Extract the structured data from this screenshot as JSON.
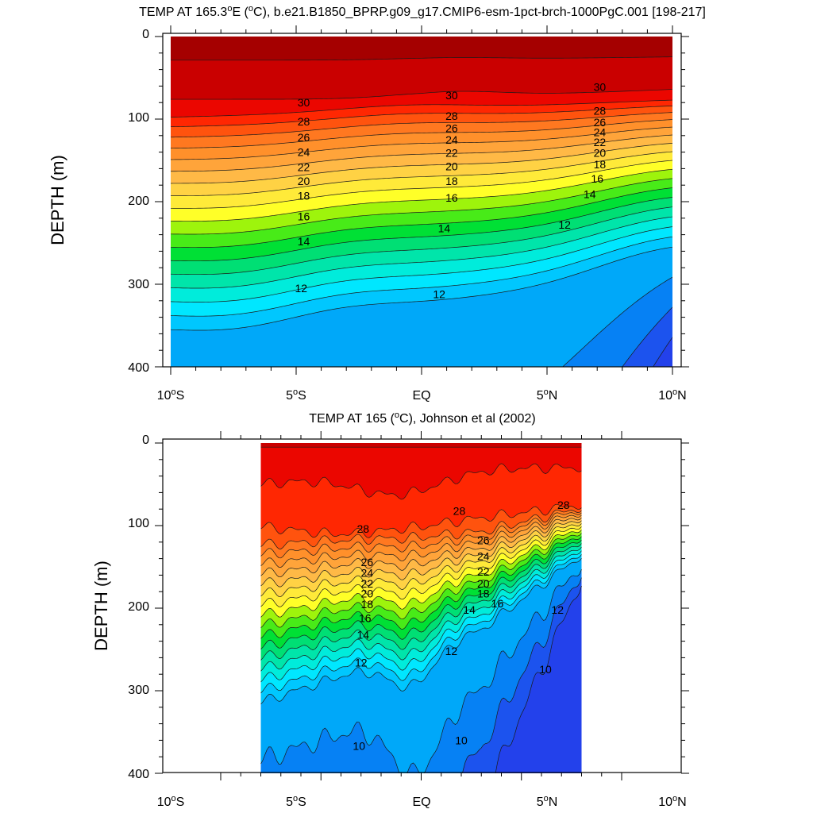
{
  "figure": {
    "panels": [
      {
        "title_parts": [
          "TEMP AT 165.3",
          "o",
          "E (",
          "o",
          "C), b.e21.B1850_BPRP.g09_g17.CMIP6-esm-1pct-brch-1000PgC.001 [198-217]"
        ],
        "source": "model"
      },
      {
        "title_parts": [
          "TEMP AT 165 (",
          "o",
          "C), Johnson et al (2002)"
        ],
        "source": "obs"
      }
    ],
    "x_tick_labels": [
      {
        "pre": "10",
        "sup": "o",
        "post": "S"
      },
      {
        "pre": "5",
        "sup": "o",
        "post": "S"
      },
      {
        "pre": "EQ",
        "sup": "",
        "post": ""
      },
      {
        "pre": "5",
        "sup": "o",
        "post": "N"
      },
      {
        "pre": "10",
        "sup": "o",
        "post": "N"
      }
    ],
    "y_tick_labels": [
      "0",
      "100",
      "200",
      "300",
      "400"
    ],
    "ylabel": "DEPTH (m)"
  },
  "chart_data": [
    {
      "type": "contour",
      "title": "TEMP AT 165.3°E (°C), b.e21.B1850_BPRP.g09_g17.CMIP6-esm-1pct-brch-1000PgC.001 [198-217]",
      "ylabel": "DEPTH (m)",
      "xlim": [
        -10,
        10
      ],
      "ylim": [
        400,
        0
      ],
      "data_x_range": [
        -10,
        10
      ],
      "x_ticks": [
        -10,
        -5,
        0,
        5,
        10
      ],
      "y_ticks": [
        0,
        100,
        200,
        300,
        400
      ],
      "y_inverted": true,
      "contour_interval": 1,
      "level_range": [
        9,
        31
      ],
      "contour_labels": [
        {
          "text": "30",
          "lat": -4.7,
          "depth": 80
        },
        {
          "text": "28",
          "lat": -4.7,
          "depth": 103
        },
        {
          "text": "26",
          "lat": -4.7,
          "depth": 122
        },
        {
          "text": "24",
          "lat": -4.7,
          "depth": 140
        },
        {
          "text": "22",
          "lat": -4.7,
          "depth": 158
        },
        {
          "text": "20",
          "lat": -4.7,
          "depth": 175
        },
        {
          "text": "18",
          "lat": -4.7,
          "depth": 193
        },
        {
          "text": "16",
          "lat": -4.7,
          "depth": 218
        },
        {
          "text": "14",
          "lat": -4.7,
          "depth": 248
        },
        {
          "text": "12",
          "lat": -4.8,
          "depth": 305
        },
        {
          "text": "30",
          "lat": 1.2,
          "depth": 71
        },
        {
          "text": "28",
          "lat": 1.2,
          "depth": 96
        },
        {
          "text": "26",
          "lat": 1.2,
          "depth": 111
        },
        {
          "text": "24",
          "lat": 1.2,
          "depth": 125
        },
        {
          "text": "22",
          "lat": 1.2,
          "depth": 141
        },
        {
          "text": "20",
          "lat": 1.2,
          "depth": 157
        },
        {
          "text": "18",
          "lat": 1.2,
          "depth": 175
        },
        {
          "text": "16",
          "lat": 1.2,
          "depth": 195
        },
        {
          "text": "14",
          "lat": 0.9,
          "depth": 232
        },
        {
          "text": "12",
          "lat": 0.7,
          "depth": 312
        },
        {
          "text": "30",
          "lat": 7.1,
          "depth": 61
        },
        {
          "text": "28",
          "lat": 7.1,
          "depth": 90
        },
        {
          "text": "26",
          "lat": 7.1,
          "depth": 104
        },
        {
          "text": "24",
          "lat": 7.1,
          "depth": 116
        },
        {
          "text": "22",
          "lat": 7.1,
          "depth": 128
        },
        {
          "text": "20",
          "lat": 7.1,
          "depth": 141
        },
        {
          "text": "18",
          "lat": 7.1,
          "depth": 155
        },
        {
          "text": "16",
          "lat": 7.0,
          "depth": 172
        },
        {
          "text": "14",
          "lat": 6.7,
          "depth": 191
        },
        {
          "text": "12",
          "lat": 5.7,
          "depth": 228
        }
      ]
    },
    {
      "type": "contour",
      "title": "TEMP AT 165 (°C), Johnson et al (2002)",
      "ylabel": "DEPTH (m)",
      "xlim": [
        -10,
        10
      ],
      "ylim": [
        400,
        0
      ],
      "data_x_range": [
        -8,
        8
      ],
      "x_ticks": [
        -10,
        -5,
        0,
        5,
        10
      ],
      "y_ticks": [
        0,
        100,
        200,
        300,
        400
      ],
      "y_inverted": true,
      "contour_interval": 1,
      "level_range": [
        9,
        30
      ],
      "contour_labels": [
        {
          "text": "28",
          "lat": -2.9,
          "depth": 104
        },
        {
          "text": "26",
          "lat": -2.7,
          "depth": 144
        },
        {
          "text": "24",
          "lat": -2.7,
          "depth": 157
        },
        {
          "text": "22",
          "lat": -2.7,
          "depth": 170
        },
        {
          "text": "20",
          "lat": -2.7,
          "depth": 182
        },
        {
          "text": "18",
          "lat": -2.7,
          "depth": 195
        },
        {
          "text": "16",
          "lat": -2.8,
          "depth": 212
        },
        {
          "text": "14",
          "lat": -2.9,
          "depth": 232
        },
        {
          "text": "12",
          "lat": -3.0,
          "depth": 266
        },
        {
          "text": "10",
          "lat": -3.1,
          "depth": 367
        },
        {
          "text": "28",
          "lat": 1.9,
          "depth": 82
        },
        {
          "text": "26",
          "lat": 3.1,
          "depth": 118
        },
        {
          "text": "24",
          "lat": 3.1,
          "depth": 137
        },
        {
          "text": "22",
          "lat": 3.1,
          "depth": 156
        },
        {
          "text": "20",
          "lat": 3.1,
          "depth": 170
        },
        {
          "text": "18",
          "lat": 3.1,
          "depth": 182
        },
        {
          "text": "16",
          "lat": 3.8,
          "depth": 194
        },
        {
          "text": "14",
          "lat": 2.4,
          "depth": 202
        },
        {
          "text": "12",
          "lat": 1.5,
          "depth": 252
        },
        {
          "text": "10",
          "lat": 2.0,
          "depth": 360
        },
        {
          "text": "28",
          "lat": 7.1,
          "depth": 75
        },
        {
          "text": "12",
          "lat": 6.8,
          "depth": 202
        },
        {
          "text": "10",
          "lat": 6.2,
          "depth": 274
        }
      ]
    }
  ]
}
